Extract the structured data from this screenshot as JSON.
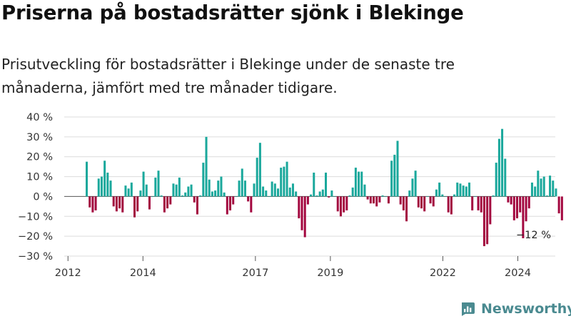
{
  "title": "Priserna på bostadsrätter sjönk i Blekinge",
  "subtitle": "Prisutveckling för bostadsrätter i Blekinge under de senaste tre månaderna, jämfört med tre månader tidigare.",
  "brand": {
    "name": "Newsworthy",
    "icon": "newsworthy-logo-icon",
    "color": "#4a8a90"
  },
  "colors": {
    "positive": "#1aa89c",
    "negative": "#a3073f",
    "grid": "#dcdcdc",
    "axis": "#555555"
  },
  "chart_data": {
    "type": "bar",
    "ylabel": "",
    "xlabel": "",
    "ylim": [
      -30,
      40
    ],
    "yticks": [
      40,
      30,
      20,
      10,
      0,
      -10,
      -20,
      -30
    ],
    "ytick_labels": [
      "40 %",
      "30 %",
      "20 %",
      "10 %",
      "0 %",
      "−10 %",
      "−20 %",
      "−30 %"
    ],
    "xticks": [
      2012,
      2014,
      2017,
      2019,
      2022,
      2024
    ],
    "x_start": 2011.9,
    "x_end": 2025.0,
    "grid": true,
    "end_label": "−12 %",
    "values": [
      17.5,
      -5.5,
      -8,
      -7,
      9,
      10,
      18,
      12,
      8,
      -5,
      -7.5,
      -6,
      -8,
      5.5,
      4,
      7,
      -10.5,
      -7.5,
      3,
      12.5,
      6,
      -6.5,
      0,
      9.5,
      13,
      0.5,
      -8,
      -6,
      -4,
      6.5,
      6,
      9.5,
      0.5,
      2,
      5,
      6,
      -3,
      -9,
      0.5,
      17,
      30,
      8.5,
      2.5,
      3,
      8,
      10,
      2,
      -9,
      -7,
      -4,
      0,
      8,
      14,
      8,
      -2.5,
      -8,
      6.5,
      19.5,
      27,
      5,
      3,
      0,
      7.5,
      6.5,
      4,
      14.5,
      15,
      17.5,
      4.5,
      6.5,
      2.5,
      -11,
      -17,
      -20.5,
      -4,
      1,
      12,
      0.5,
      2.5,
      3.5,
      12,
      -0.5,
      3,
      0,
      -7.5,
      -10,
      -8,
      -7,
      0.5,
      4.5,
      14.5,
      12.5,
      12.5,
      6,
      -1.5,
      -3.5,
      -3.5,
      -5,
      -3,
      0.5,
      0,
      -3.5,
      18,
      21,
      28,
      -4,
      -7,
      -12.5,
      3,
      9,
      13,
      -5.5,
      -6,
      -7.5,
      0,
      -3.5,
      -5,
      3.5,
      7,
      1,
      0,
      -8,
      -9,
      1,
      7,
      6.5,
      5.5,
      5,
      7,
      -7,
      0,
      -7,
      -8,
      -25,
      -24,
      -14,
      0.5,
      17,
      29,
      34,
      19,
      -3,
      -4,
      -12,
      -11,
      -8,
      -21,
      -12.5,
      -6,
      7,
      5,
      13,
      9,
      10,
      0.5,
      10.5,
      8,
      4,
      -8.5,
      -12
    ]
  }
}
